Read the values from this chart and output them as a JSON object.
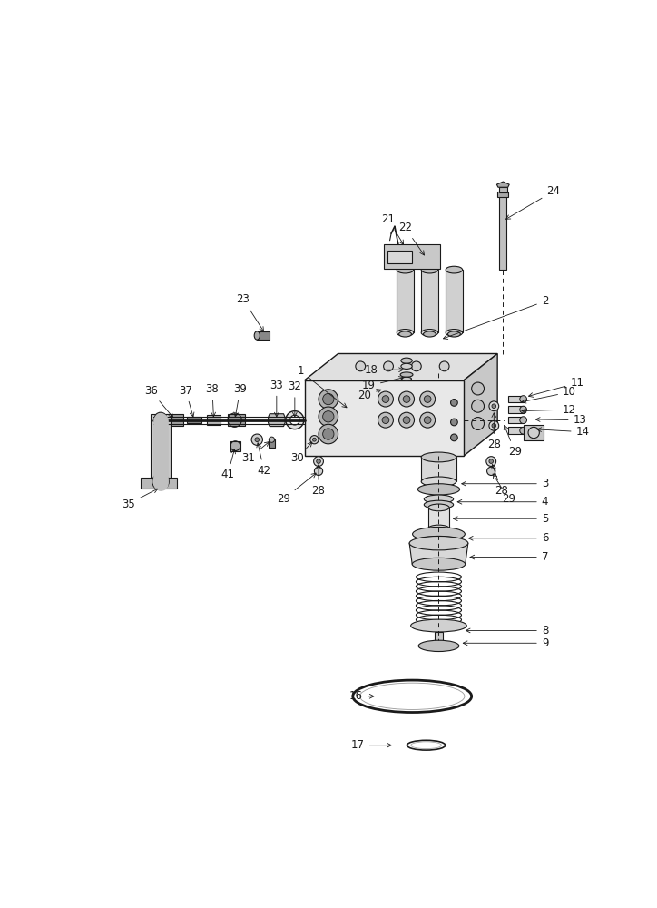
{
  "bg_color": "#ffffff",
  "fig_width": 7.24,
  "fig_height": 10.0,
  "gray": "#1a1a1a",
  "lgray": "#999999",
  "mgray": "#cccccc",
  "dgray": "#555555"
}
